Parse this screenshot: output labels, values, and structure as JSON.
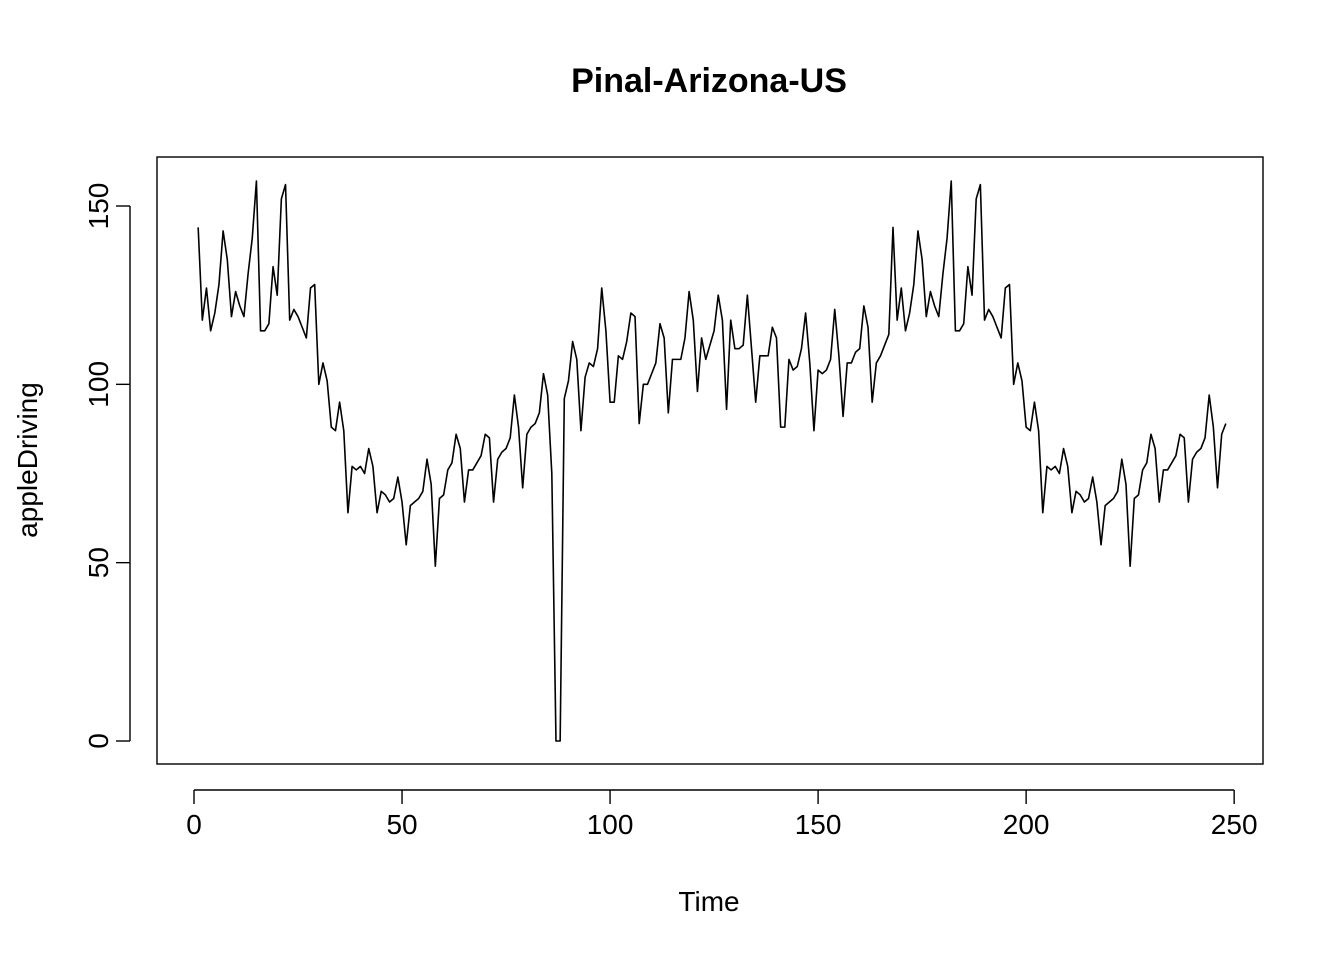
{
  "chart_data": {
    "type": "line",
    "title": "Pinal-Arizona-US",
    "xlabel": "Time",
    "ylabel": "appleDriving",
    "xlim": [
      1,
      248
    ],
    "ylim": [
      0,
      157
    ],
    "x_ticks": [
      0,
      50,
      100,
      150,
      200,
      250
    ],
    "y_ticks": [
      0,
      50,
      100,
      150
    ],
    "grid": false,
    "legend": "none",
    "series_color": "#000000",
    "series": [
      {
        "x_start": 1,
        "values": [
          144,
          118,
          127,
          115,
          120,
          128,
          143,
          135,
          119,
          126,
          122,
          119,
          131,
          141,
          157,
          115,
          115,
          117,
          133,
          125,
          152,
          156,
          118,
          121,
          119,
          116,
          113,
          127,
          128,
          100,
          106,
          101,
          88,
          87,
          95,
          87,
          64,
          77,
          76,
          77,
          75,
          82,
          77,
          64,
          70,
          69,
          67,
          68,
          74,
          67,
          55,
          66,
          67,
          68,
          70,
          79,
          72,
          49,
          68,
          69,
          76,
          78,
          86,
          82,
          67,
          76,
          76,
          78,
          80,
          86,
          85,
          67,
          79,
          81,
          82,
          85,
          97,
          88,
          71,
          86,
          88,
          89,
          92,
          103,
          97,
          75,
          0,
          0,
          96,
          101,
          112,
          107,
          87,
          102,
          106,
          105,
          110,
          127,
          115,
          95,
          95,
          108,
          107,
          112,
          120,
          119,
          89,
          100,
          100,
          103,
          106,
          117,
          113,
          92,
          107,
          107,
          107,
          113,
          126,
          118,
          98,
          113,
          107,
          111,
          115,
          125,
          118,
          93,
          118,
          110,
          110,
          111,
          125,
          110,
          95,
          108,
          108,
          108,
          116,
          113,
          88,
          88,
          107,
          104,
          105,
          110,
          120,
          106,
          87,
          104,
          103,
          104,
          107,
          121,
          108,
          91,
          106,
          106,
          109,
          110,
          122,
          116,
          95,
          106,
          108,
          111,
          114,
          144,
          118,
          127,
          115,
          120,
          128,
          143,
          135,
          119,
          126,
          122,
          119,
          131,
          141,
          157,
          115,
          115,
          117,
          133,
          125,
          152,
          156,
          118,
          121,
          119,
          116,
          113,
          127,
          128,
          100,
          106,
          101,
          88,
          87,
          95,
          87,
          64,
          77,
          76,
          77,
          75,
          82,
          77,
          64,
          70,
          69,
          67,
          68,
          74,
          67,
          55,
          66,
          67,
          68,
          70,
          79,
          72,
          49,
          68,
          69,
          76,
          78,
          86,
          82,
          67,
          76,
          76,
          78,
          80,
          86,
          85,
          67,
          79,
          81,
          82,
          85,
          97,
          88,
          71,
          86,
          89
        ]
      }
    ]
  }
}
